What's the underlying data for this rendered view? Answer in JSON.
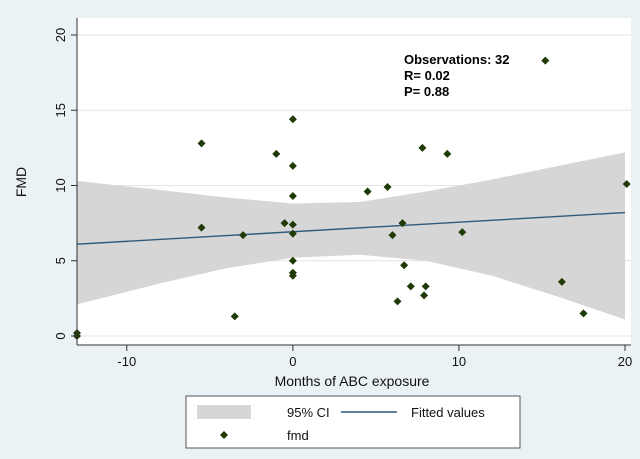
{
  "chart_data": {
    "type": "scatter",
    "xlabel": "Months of ABC exposure",
    "ylabel": "FMD",
    "xlim": [
      -13,
      20
    ],
    "ylim": [
      0,
      20
    ],
    "x_ticks": [
      -10,
      0,
      10,
      20
    ],
    "y_ticks": [
      0,
      5,
      10,
      15,
      20
    ],
    "grid": "horizontal",
    "legend_position": "bottom",
    "annotations": [
      "Observations: 32",
      "R= 0.02",
      "P= 0.88"
    ],
    "series": [
      {
        "name": "fmd",
        "kind": "scatter",
        "color": "#1f3a05",
        "points": [
          [
            -13,
            0.0
          ],
          [
            -5.5,
            12.8
          ],
          [
            -5.5,
            7.2
          ],
          [
            -3,
            6.7
          ],
          [
            -3.5,
            1.3
          ],
          [
            -1,
            12.1
          ],
          [
            -0.5,
            7.5
          ],
          [
            0,
            14.4
          ],
          [
            0,
            11.3
          ],
          [
            0,
            9.3
          ],
          [
            0,
            7.4
          ],
          [
            0,
            6.8
          ],
          [
            0,
            5.0
          ],
          [
            0,
            4.2
          ],
          [
            0,
            4.0
          ],
          [
            4.5,
            9.6
          ],
          [
            5.7,
            9.9
          ],
          [
            6,
            6.7
          ],
          [
            6.3,
            2.3
          ],
          [
            6.6,
            7.5
          ],
          [
            6.7,
            4.7
          ],
          [
            7.1,
            3.3
          ],
          [
            7.8,
            12.5
          ],
          [
            7.9,
            2.7
          ],
          [
            8,
            3.3
          ],
          [
            9.3,
            12.1
          ],
          [
            10.2,
            6.9
          ],
          [
            15.2,
            18.3
          ],
          [
            16.2,
            3.6
          ],
          [
            17.5,
            1.5
          ],
          [
            20.1,
            10.1
          ],
          [
            -13,
            0.2
          ]
        ]
      },
      {
        "name": "Fitted values",
        "kind": "line",
        "color": "#2c5a7a",
        "x": [
          -13,
          20
        ],
        "y": [
          6.1,
          8.2
        ]
      },
      {
        "name": "95% CI",
        "kind": "band",
        "color": "#d6d6d6",
        "x": [
          -13,
          -8,
          -4,
          0,
          4,
          8,
          12,
          16,
          20
        ],
        "lower": [
          2.1,
          3.5,
          4.5,
          5.2,
          5.4,
          5.0,
          4.0,
          2.6,
          1.1
        ],
        "upper": [
          10.3,
          9.7,
          9.2,
          8.8,
          8.9,
          9.6,
          10.4,
          11.3,
          12.2
        ]
      }
    ]
  },
  "legend": {
    "ci_label": "95% CI",
    "fit_label": "Fitted values",
    "points_label": "fmd"
  }
}
